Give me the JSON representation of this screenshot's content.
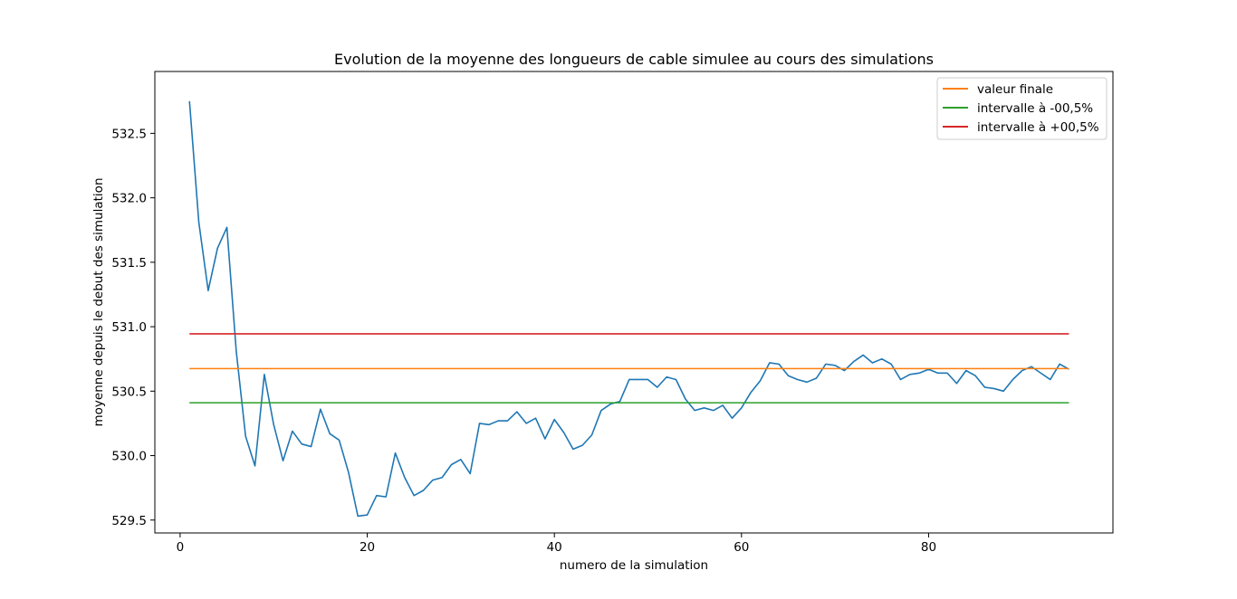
{
  "chart_data": {
    "type": "line",
    "title": "Evolution de la moyenne des longueurs de cable simulee au cours des simulations",
    "xlabel": "numero de la simulation",
    "ylabel": "moyenne depuis le debut des simulation",
    "xlim": [
      -2.7,
      99.7
    ],
    "ylim": [
      529.4,
      532.98
    ],
    "xticks": [
      0,
      20,
      40,
      60,
      80
    ],
    "xtick_labels": [
      "0",
      "20",
      "40",
      "60",
      "80"
    ],
    "yticks": [
      529.5,
      530.0,
      530.5,
      531.0,
      531.5,
      532.0,
      532.5
    ],
    "ytick_labels": [
      "529.5",
      "530.0",
      "530.5",
      "531.0",
      "531.5",
      "532.0",
      "532.5"
    ],
    "grid": false,
    "legend_position": "top-right",
    "series": [
      {
        "name": "",
        "color": "#1f77b4",
        "x": [
          1,
          2,
          3,
          4,
          5,
          6,
          7,
          8,
          9,
          10,
          11,
          12,
          13,
          14,
          15,
          16,
          17,
          18,
          19,
          20,
          21,
          22,
          23,
          24,
          25,
          26,
          27,
          28,
          29,
          30,
          31,
          32,
          33,
          34,
          35,
          36,
          37,
          38,
          39,
          40,
          41,
          42,
          43,
          44,
          45,
          46,
          47,
          48,
          49,
          50,
          51,
          52,
          53,
          54,
          55,
          56,
          57,
          58,
          59,
          60,
          61,
          62,
          63,
          64,
          65,
          66,
          67,
          68,
          69,
          70,
          71,
          72,
          73,
          74,
          75,
          76,
          77,
          78,
          79,
          80,
          81,
          82,
          83,
          84,
          85,
          86,
          87,
          88,
          89,
          90,
          91,
          92,
          93,
          94,
          95
        ],
        "y": [
          532.75,
          531.81,
          531.28,
          531.61,
          531.77,
          530.81,
          530.15,
          529.92,
          530.63,
          530.24,
          529.96,
          530.19,
          530.09,
          530.07,
          530.36,
          530.17,
          530.12,
          529.87,
          529.53,
          529.54,
          529.69,
          529.68,
          530.02,
          529.83,
          529.69,
          529.73,
          529.81,
          529.83,
          529.93,
          529.97,
          529.86,
          530.25,
          530.24,
          530.27,
          530.27,
          530.34,
          530.25,
          530.29,
          530.13,
          530.28,
          530.18,
          530.05,
          530.08,
          530.16,
          530.35,
          530.4,
          530.42,
          530.59,
          530.59,
          530.59,
          530.53,
          530.61,
          530.59,
          530.44,
          530.35,
          530.37,
          530.35,
          530.39,
          530.29,
          530.37,
          530.49,
          530.58,
          530.72,
          530.71,
          530.62,
          530.59,
          530.57,
          530.6,
          530.71,
          530.7,
          530.66,
          530.73,
          530.78,
          530.72,
          530.75,
          530.71,
          530.59,
          530.63,
          530.64,
          530.67,
          530.64,
          530.64,
          530.56,
          530.66,
          530.62,
          530.53,
          530.52,
          530.5,
          530.59,
          530.66,
          530.69,
          530.64,
          530.59,
          530.71,
          530.67
        ]
      },
      {
        "name": "valeur finale",
        "color": "#ff7f0e",
        "x": [
          1,
          95
        ],
        "y": [
          530.675,
          530.675
        ]
      },
      {
        "name": "intervalle à -00,5%",
        "color": "#2ca02c",
        "x": [
          1,
          95
        ],
        "y": [
          530.41,
          530.41
        ]
      },
      {
        "name": "intervalle à +00,5%",
        "color": "#d62728",
        "x": [
          1,
          95
        ],
        "y": [
          530.945,
          530.945
        ]
      }
    ]
  }
}
